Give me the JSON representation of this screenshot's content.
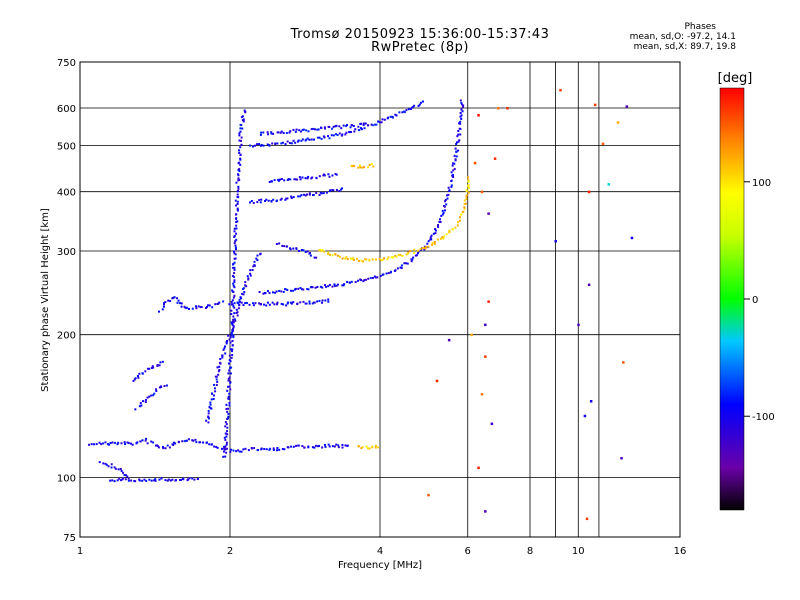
{
  "chart_data": {
    "type": "scatter",
    "title": "Tromsø 20150923 15:36:00-15:37:43",
    "subtitle": "RwPretec (8p)",
    "xlabel": "Frequency [MHz]",
    "ylabel": "Stationary phase Virtual Height [km]",
    "x_scale": "log",
    "y_scale": "log",
    "xlim": [
      1,
      16
    ],
    "ylim": [
      75,
      750
    ],
    "x_ticks": [
      1,
      2,
      4,
      6,
      8,
      10,
      16
    ],
    "x_tick_labels": [
      "1",
      "2",
      "4",
      "6",
      "8",
      "10",
      "16"
    ],
    "y_ticks": [
      75,
      100,
      200,
      300,
      400,
      500,
      600,
      750
    ],
    "y_tick_labels": [
      "75",
      "100",
      "200",
      "300",
      "400",
      "500",
      "600",
      "750"
    ],
    "grid": true,
    "colorbar": {
      "label": "[deg]",
      "range": [
        -180,
        180
      ],
      "tick_values": [
        100,
        0,
        -100
      ],
      "tick_labels": [
        "100",
        "0",
        "-100"
      ]
    },
    "stats": {
      "heading": "Phases",
      "line_o": "mean, sd,O: -97.2, 14.1",
      "line_x": "mean, sd,X: 89.7, 19.8"
    },
    "traces": [
      {
        "phase": -100,
        "points": [
          [
            1.05,
            118
          ],
          [
            1.12,
            118
          ],
          [
            1.2,
            118
          ],
          [
            1.28,
            118
          ],
          [
            1.35,
            120
          ],
          [
            1.4,
            118
          ],
          [
            1.45,
            116
          ],
          [
            1.5,
            116
          ],
          [
            1.6,
            120
          ],
          [
            1.7,
            120
          ],
          [
            1.8,
            118
          ],
          [
            1.9,
            116
          ],
          [
            2.0,
            114
          ],
          [
            2.1,
            114
          ],
          [
            2.3,
            115
          ],
          [
            2.5,
            115
          ],
          [
            2.7,
            116
          ],
          [
            3.0,
            116
          ],
          [
            3.2,
            117
          ],
          [
            3.5,
            116
          ]
        ]
      },
      {
        "phase": -100,
        "points": [
          [
            1.15,
            99
          ],
          [
            1.25,
            99
          ],
          [
            1.35,
            99
          ],
          [
            1.45,
            99
          ],
          [
            1.55,
            99
          ],
          [
            1.65,
            99
          ],
          [
            1.75,
            99
          ]
        ]
      },
      {
        "phase": -100,
        "points": [
          [
            1.1,
            108
          ],
          [
            1.15,
            106
          ],
          [
            1.2,
            104
          ],
          [
            1.25,
            100
          ]
        ]
      },
      {
        "phase": -100,
        "points": [
          [
            1.3,
            140
          ],
          [
            1.35,
            145
          ],
          [
            1.4,
            150
          ],
          [
            1.45,
            155
          ],
          [
            1.5,
            158
          ]
        ]
      },
      {
        "phase": -100,
        "points": [
          [
            1.28,
            160
          ],
          [
            1.35,
            168
          ],
          [
            1.42,
            172
          ],
          [
            1.48,
            175
          ]
        ]
      },
      {
        "phase": -100,
        "points": [
          [
            1.45,
            225
          ],
          [
            1.5,
            235
          ],
          [
            1.55,
            240
          ],
          [
            1.6,
            230
          ],
          [
            1.65,
            228
          ],
          [
            1.75,
            228
          ],
          [
            1.85,
            230
          ],
          [
            1.95,
            234
          ]
        ]
      },
      {
        "phase": -100,
        "points": [
          [
            1.95,
            110
          ],
          [
            1.98,
            140
          ],
          [
            2.0,
            170
          ],
          [
            2.02,
            200
          ],
          [
            2.03,
            240
          ],
          [
            2.04,
            280
          ],
          [
            2.05,
            320
          ],
          [
            2.06,
            360
          ],
          [
            2.07,
            400
          ],
          [
            2.08,
            440
          ],
          [
            2.09,
            480
          ],
          [
            2.1,
            520
          ],
          [
            2.11,
            550
          ],
          [
            2.13,
            580
          ],
          [
            2.15,
            600
          ]
        ]
      },
      {
        "phase": -100,
        "points": [
          [
            1.8,
            130
          ],
          [
            1.85,
            150
          ],
          [
            1.9,
            170
          ],
          [
            1.95,
            185
          ],
          [
            2.0,
            200
          ],
          [
            2.05,
            215
          ],
          [
            2.1,
            240
          ],
          [
            2.2,
            270
          ],
          [
            2.3,
            300
          ]
        ]
      },
      {
        "phase": -95,
        "points": [
          [
            2.2,
            500
          ],
          [
            2.5,
            505
          ],
          [
            2.8,
            512
          ],
          [
            3.1,
            520
          ],
          [
            3.4,
            530
          ],
          [
            3.7,
            545
          ],
          [
            4.0,
            560
          ],
          [
            4.3,
            580
          ],
          [
            4.6,
            600
          ],
          [
            4.9,
            620
          ]
        ]
      },
      {
        "phase": -95,
        "points": [
          [
            2.3,
            530
          ],
          [
            2.6,
            535
          ],
          [
            2.9,
            540
          ],
          [
            3.2,
            545
          ],
          [
            3.5,
            550
          ],
          [
            3.8,
            555
          ]
        ]
      },
      {
        "phase": -100,
        "points": [
          [
            2.2,
            380
          ],
          [
            2.5,
            385
          ],
          [
            2.8,
            392
          ],
          [
            3.1,
            398
          ],
          [
            3.4,
            405
          ]
        ]
      },
      {
        "phase": -100,
        "points": [
          [
            2.4,
            420
          ],
          [
            2.7,
            425
          ],
          [
            3.0,
            430
          ],
          [
            3.3,
            435
          ]
        ]
      },
      {
        "phase": -100,
        "points": [
          [
            2.3,
            245
          ],
          [
            2.6,
            248
          ],
          [
            3.0,
            252
          ],
          [
            3.4,
            256
          ],
          [
            3.8,
            262
          ],
          [
            4.2,
            270
          ],
          [
            4.6,
            285
          ],
          [
            5.0,
            310
          ],
          [
            5.3,
            350
          ],
          [
            5.5,
            400
          ],
          [
            5.65,
            460
          ],
          [
            5.75,
            520
          ],
          [
            5.82,
            580
          ],
          [
            5.85,
            630
          ]
        ]
      },
      {
        "phase": -100,
        "points": [
          [
            2.0,
            232
          ],
          [
            2.3,
            232
          ],
          [
            2.6,
            232
          ],
          [
            2.9,
            234
          ],
          [
            3.2,
            236
          ]
        ]
      },
      {
        "phase": 110,
        "points": [
          [
            3.0,
            302
          ],
          [
            3.3,
            292
          ],
          [
            3.6,
            287
          ],
          [
            3.9,
            287
          ],
          [
            4.2,
            290
          ],
          [
            4.5,
            295
          ],
          [
            4.8,
            302
          ],
          [
            5.1,
            310
          ],
          [
            5.4,
            322
          ],
          [
            5.7,
            340
          ],
          [
            5.9,
            365
          ],
          [
            6.0,
            400
          ],
          [
            6.05,
            430
          ]
        ]
      },
      {
        "phase": 110,
        "points": [
          [
            3.5,
            450
          ],
          [
            3.7,
            452
          ],
          [
            3.9,
            455
          ]
        ]
      },
      {
        "phase": 110,
        "points": [
          [
            3.6,
            116
          ],
          [
            3.8,
            116
          ],
          [
            4.0,
            116
          ]
        ]
      },
      {
        "phase": -100,
        "points": [
          [
            2.5,
            310
          ],
          [
            2.8,
            300
          ],
          [
            3.0,
            290
          ]
        ]
      }
    ],
    "scattered_points": [
      {
        "x": 6.3,
        "y": 580,
        "phase": 175
      },
      {
        "x": 6.4,
        "y": 400,
        "phase": 150
      },
      {
        "x": 6.6,
        "y": 360,
        "phase": -140
      },
      {
        "x": 6.2,
        "y": 460,
        "phase": 155
      },
      {
        "x": 6.1,
        "y": 200,
        "phase": 120
      },
      {
        "x": 6.5,
        "y": 180,
        "phase": 160
      },
      {
        "x": 6.4,
        "y": 150,
        "phase": 140
      },
      {
        "x": 6.7,
        "y": 130,
        "phase": -120
      },
      {
        "x": 6.3,
        "y": 105,
        "phase": 170
      },
      {
        "x": 6.5,
        "y": 85,
        "phase": -130
      },
      {
        "x": 5.5,
        "y": 195,
        "phase": -130
      },
      {
        "x": 5.2,
        "y": 160,
        "phase": 170
      },
      {
        "x": 5.0,
        "y": 92,
        "phase": 150
      },
      {
        "x": 6.8,
        "y": 470,
        "phase": 165
      },
      {
        "x": 6.9,
        "y": 600,
        "phase": 140
      },
      {
        "x": 9.2,
        "y": 655,
        "phase": 160
      },
      {
        "x": 9.0,
        "y": 315,
        "phase": -100
      },
      {
        "x": 10.0,
        "y": 210,
        "phase": -130
      },
      {
        "x": 10.5,
        "y": 400,
        "phase": 170
      },
      {
        "x": 10.8,
        "y": 610,
        "phase": 160
      },
      {
        "x": 11.2,
        "y": 505,
        "phase": 150
      },
      {
        "x": 11.5,
        "y": 415,
        "phase": -30
      },
      {
        "x": 12.0,
        "y": 560,
        "phase": 120
      },
      {
        "x": 12.5,
        "y": 605,
        "phase": -130
      },
      {
        "x": 12.8,
        "y": 320,
        "phase": -100
      },
      {
        "x": 10.5,
        "y": 255,
        "phase": -130
      },
      {
        "x": 10.6,
        "y": 145,
        "phase": -100
      },
      {
        "x": 10.3,
        "y": 135,
        "phase": -100
      },
      {
        "x": 12.3,
        "y": 175,
        "phase": 150
      },
      {
        "x": 12.2,
        "y": 110,
        "phase": -130
      },
      {
        "x": 10.4,
        "y": 82,
        "phase": 160
      },
      {
        "x": 7.2,
        "y": 600,
        "phase": 165
      },
      {
        "x": 6.6,
        "y": 235,
        "phase": 170
      },
      {
        "x": 6.5,
        "y": 210,
        "phase": -120
      }
    ]
  }
}
